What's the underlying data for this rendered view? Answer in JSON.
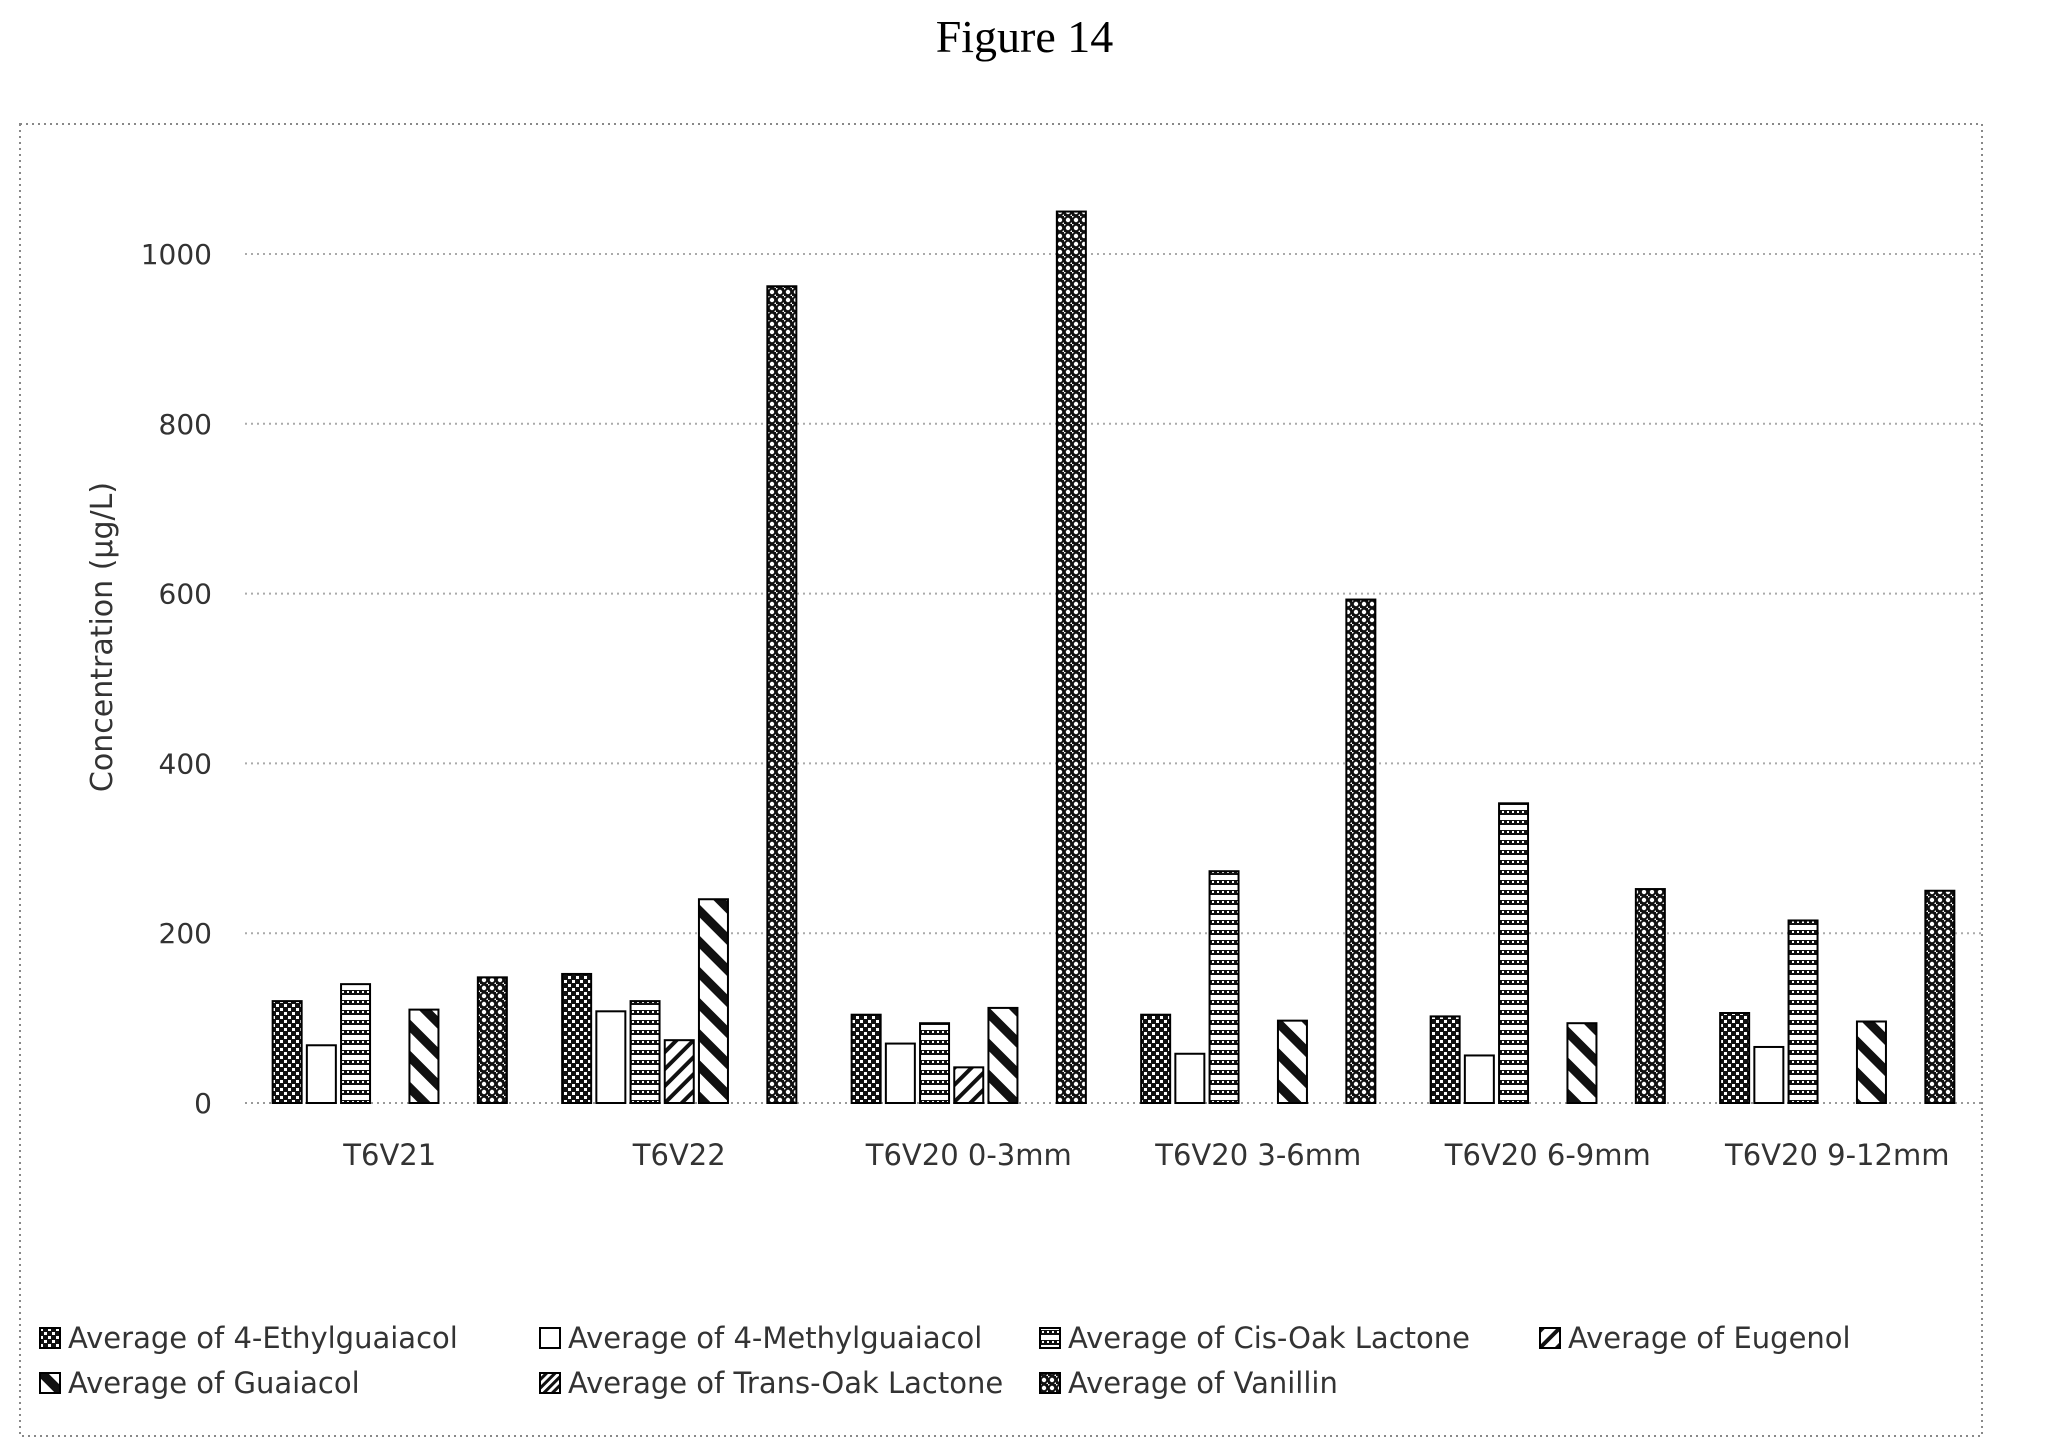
{
  "figure_title": "Figure 14",
  "chart_data": {
    "type": "bar",
    "title": "",
    "xlabel": "",
    "ylabel": "Concentration (µg/L)",
    "ylim": [
      0,
      1100
    ],
    "yticks": [
      0,
      200,
      400,
      600,
      800,
      1000
    ],
    "grid": "horizontal dotted",
    "legend_position": "bottom",
    "categories": [
      "T6V21",
      "T6V22",
      "T6V20 0-3mm",
      "T6V20 3-6mm",
      "T6V20 6-9mm",
      "T6V20 9-12mm"
    ],
    "series": [
      {
        "name": "Average of 4-Ethylguaiacol",
        "pattern": "dark-checker",
        "values": [
          120,
          152,
          104,
          104,
          102,
          106
        ]
      },
      {
        "name": "Average of 4-Methylguaiacol",
        "pattern": "white",
        "values": [
          68,
          108,
          70,
          58,
          56,
          66
        ]
      },
      {
        "name": "Average of Cis-Oak Lactone",
        "pattern": "horizontal-stripes",
        "values": [
          140,
          120,
          94,
          273,
          353,
          215
        ]
      },
      {
        "name": "Average of Eugenol",
        "pattern": "diagonal-fine",
        "values": [
          null,
          74,
          42,
          null,
          null,
          null
        ]
      },
      {
        "name": "Average of Guaiacol",
        "pattern": "diagonal-wide",
        "values": [
          110,
          240,
          112,
          97,
          94,
          96
        ]
      },
      {
        "name": "Average of Trans-Oak Lactone",
        "pattern": "diagonal-dense",
        "values": [
          null,
          null,
          null,
          null,
          null,
          null
        ]
      },
      {
        "name": "Average of Vanillin",
        "pattern": "dots",
        "values": [
          148,
          962,
          1050,
          593,
          252,
          250
        ]
      }
    ]
  }
}
